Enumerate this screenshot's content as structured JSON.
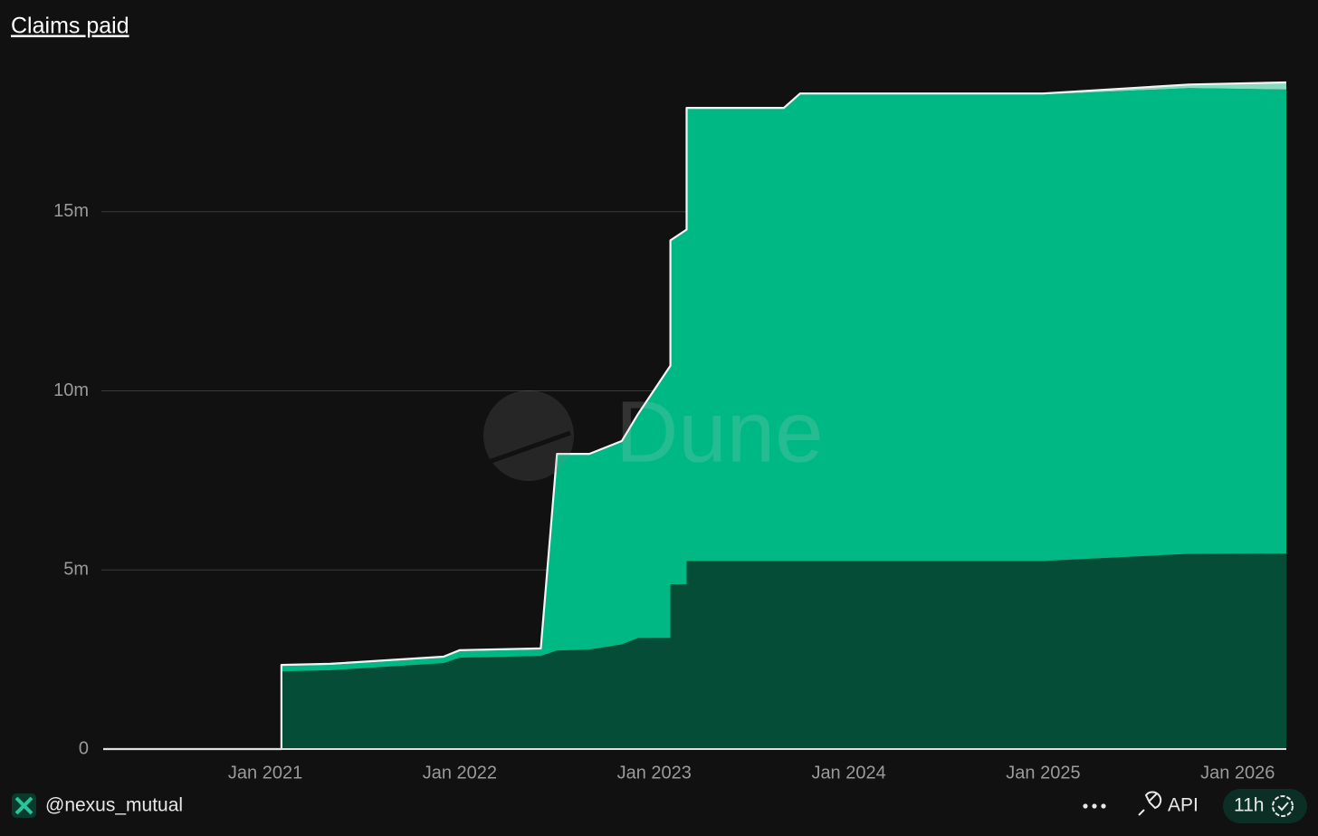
{
  "chart_data": {
    "type": "area",
    "stacked": true,
    "title": "Claims paid",
    "watermark": "Dune",
    "x": [
      "2020-03",
      "2021-02",
      "2021-02",
      "2021-05",
      "2021-12",
      "2022-01",
      "2022-06",
      "2022-07",
      "2022-09",
      "2022-11",
      "2022-12",
      "2023-02",
      "2023-02",
      "2023-03",
      "2023-03",
      "2023-09",
      "2023-10",
      "2025-01",
      "2025-10",
      "2026-04"
    ],
    "series": [
      {
        "color": "#054d36",
        "values": [
          0,
          0,
          2170000,
          2200000,
          2400000,
          2550000,
          2600000,
          2750000,
          2780000,
          2920000,
          3100000,
          3100000,
          4600000,
          4600000,
          5250000,
          5250000,
          5250000,
          5250000,
          5450000,
          5460000
        ]
      },
      {
        "color": "#00b884",
        "values": [
          0,
          0,
          150000,
          150000,
          150000,
          180000,
          180000,
          5460000,
          5430000,
          5650000,
          6220000,
          7570000,
          9570000,
          9870000,
          12620000,
          12620000,
          13020000,
          13020000,
          13000000,
          12950000
        ]
      },
      {
        "color": "#86dcbd",
        "values": [
          0,
          0,
          30000,
          30000,
          30000,
          30000,
          30000,
          30000,
          30000,
          30000,
          30000,
          30000,
          30000,
          30000,
          30000,
          30000,
          30000,
          30000,
          100000,
          200000
        ]
      }
    ],
    "xlim": [
      "2020-03",
      "2026-04"
    ],
    "xticks": [
      {
        "value": "2021-01",
        "label": "Jan 2021"
      },
      {
        "value": "2022-01",
        "label": "Jan 2022"
      },
      {
        "value": "2023-01",
        "label": "Jan 2023"
      },
      {
        "value": "2024-01",
        "label": "Jan 2024"
      },
      {
        "value": "2025-01",
        "label": "Jan 2025"
      },
      {
        "value": "2026-01",
        "label": "Jan 2026"
      }
    ],
    "ylim": [
      0,
      20000000
    ],
    "yticks": [
      0,
      {
        "value": 5000000,
        "label": "5m"
      },
      {
        "value": 10000000,
        "label": "10m"
      },
      {
        "value": 15000000,
        "label": "15m"
      }
    ],
    "grid": true
  },
  "footer": {
    "author": "@nexus_mutual",
    "api": "API",
    "age": "11h"
  }
}
